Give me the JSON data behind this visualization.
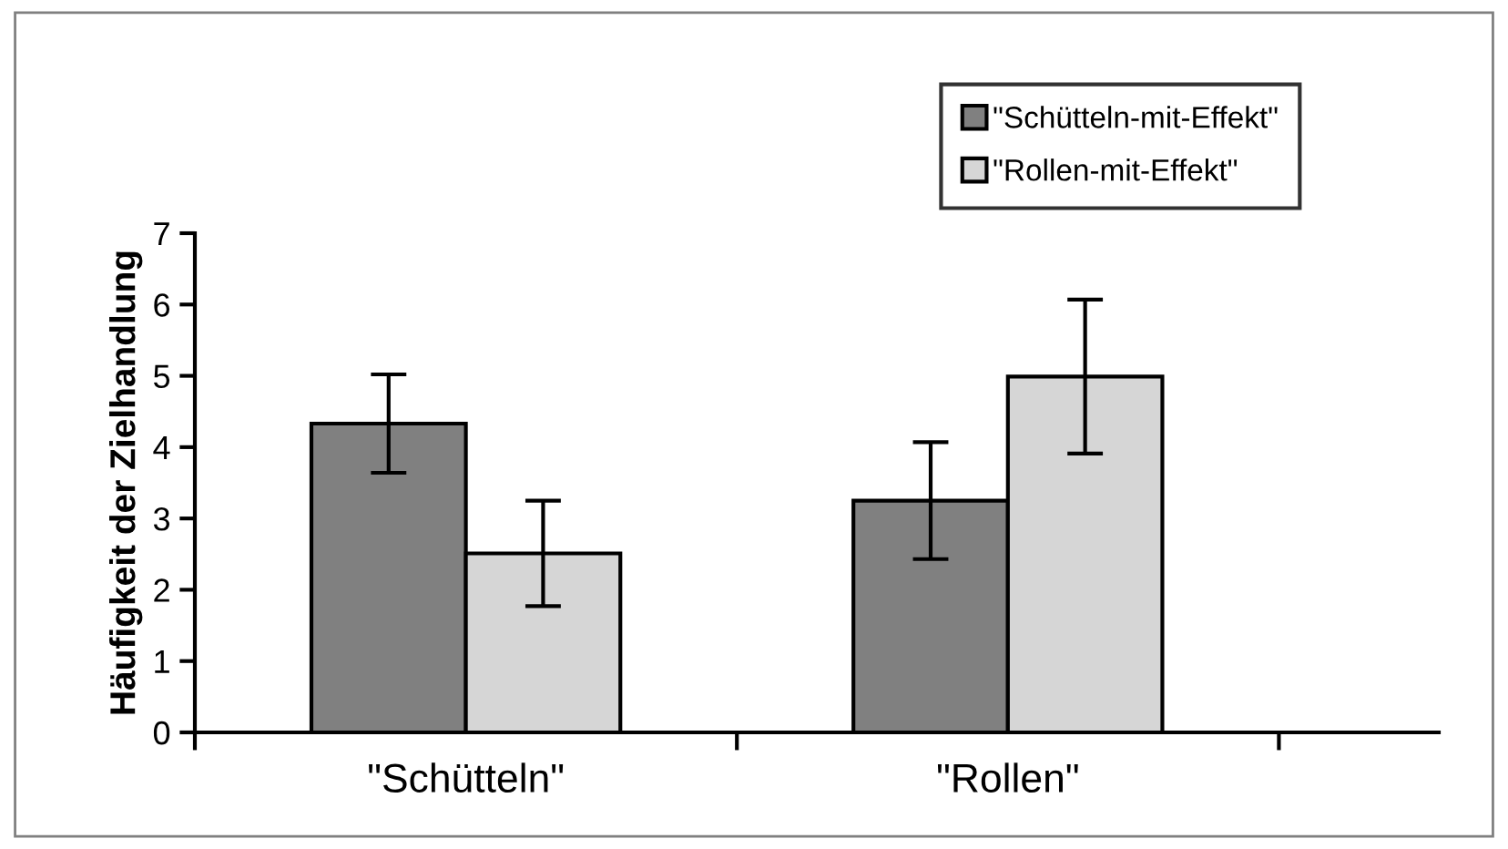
{
  "chart_data": {
    "type": "bar",
    "ylabel": "Häufigkeit der Zielhandlung",
    "categories": [
      "\"Schütteln\"",
      "\"Rollen\""
    ],
    "series": [
      {
        "name": "\"Schütteln-mit-Effekt\"",
        "color": "#808080",
        "values": [
          4.33,
          3.25
        ],
        "errors": [
          0.69,
          0.82
        ]
      },
      {
        "name": "\"Rollen-mit-Effekt\"",
        "color": "#d6d6d6",
        "values": [
          2.51,
          4.99
        ],
        "errors": [
          0.74,
          1.08
        ]
      }
    ],
    "ylim": [
      0,
      7
    ],
    "yticks": [
      0,
      1,
      2,
      3,
      4,
      5,
      6,
      7
    ],
    "grid": false,
    "legend": "top right"
  }
}
